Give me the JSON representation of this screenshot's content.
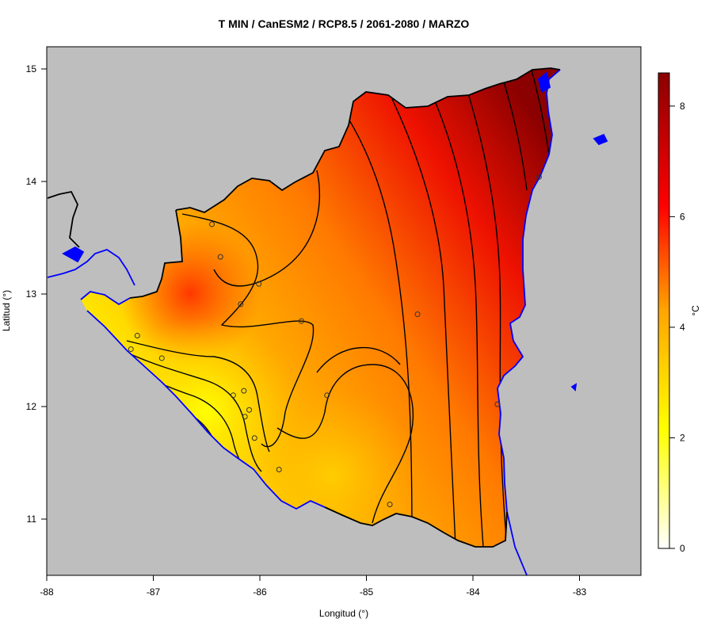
{
  "title": "T MIN / CanESM2 / RCP8.5 / 2061-2080 / MARZO",
  "x_axis": {
    "label": "Longitud (°)",
    "ticks": [
      {
        "value": -88,
        "label": "-88"
      },
      {
        "value": -87,
        "label": "-87"
      },
      {
        "value": -86,
        "label": "-86"
      },
      {
        "value": -85,
        "label": "-85"
      },
      {
        "value": -84,
        "label": "-84"
      },
      {
        "value": -83,
        "label": "-83"
      }
    ]
  },
  "y_axis": {
    "label": "Latitud (°)",
    "ticks": [
      {
        "value": 11,
        "label": "11"
      },
      {
        "value": 12,
        "label": "12"
      },
      {
        "value": 13,
        "label": "13"
      },
      {
        "value": 14,
        "label": "14"
      },
      {
        "value": 15,
        "label": "15"
      }
    ]
  },
  "colorbar": {
    "unit": "°C",
    "ticks": [
      {
        "value": 0,
        "label": "0"
      },
      {
        "value": 2,
        "label": "2"
      },
      {
        "value": 4,
        "label": "4"
      },
      {
        "value": 6,
        "label": "6"
      },
      {
        "value": 8,
        "label": "8"
      }
    ],
    "range": [
      0,
      8.6
    ],
    "colors": [
      "#ffffff",
      "#ffff00",
      "#ffa500",
      "#ff0000",
      "#8b0000"
    ]
  },
  "colors": {
    "background_land": "#bebebe",
    "coastline": "#0000ff",
    "border": "#000000",
    "contour": "#000000"
  },
  "stations": [
    {
      "lon": -86.45,
      "lat": 13.62
    },
    {
      "lon": -86.37,
      "lat": 13.33
    },
    {
      "lon": -86.01,
      "lat": 13.09
    },
    {
      "lon": -86.18,
      "lat": 12.91
    },
    {
      "lon": -85.61,
      "lat": 12.76
    },
    {
      "lon": -84.52,
      "lat": 12.82
    },
    {
      "lon": -87.15,
      "lat": 12.63
    },
    {
      "lon": -87.21,
      "lat": 12.51
    },
    {
      "lon": -86.92,
      "lat": 12.43
    },
    {
      "lon": -86.15,
      "lat": 12.14
    },
    {
      "lon": -86.25,
      "lat": 12.1
    },
    {
      "lon": -86.1,
      "lat": 11.97
    },
    {
      "lon": -86.14,
      "lat": 11.91
    },
    {
      "lon": -85.37,
      "lat": 12.1
    },
    {
      "lon": -86.05,
      "lat": 11.72
    },
    {
      "lon": -85.82,
      "lat": 11.44
    },
    {
      "lon": -84.78,
      "lat": 11.13
    },
    {
      "lon": -83.77,
      "lat": 12.02
    },
    {
      "lon": -83.38,
      "lat": 14.04
    }
  ]
}
